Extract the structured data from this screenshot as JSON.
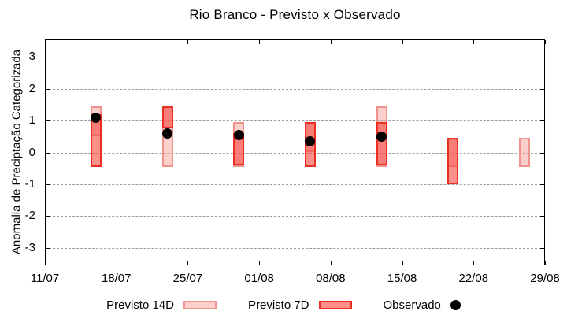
{
  "chart_data": {
    "type": "candlestick",
    "title": "Rio Branco - Previsto x Observado",
    "ylabel": "Anomalia de Preciptação Categorizada",
    "xlabel": "",
    "grid": "horizontal-dashed",
    "legend_position": "bottom-center",
    "ylim": [
      -3.55,
      3.55
    ],
    "y_ticks": [
      3,
      2,
      1,
      0,
      -1,
      -2,
      -3
    ],
    "y_tick_labels": [
      "3",
      "2",
      "1",
      "0",
      "-1",
      "-2",
      "-3"
    ],
    "xlim_days": [
      0,
      49
    ],
    "x_tick_days": [
      0,
      7,
      14,
      21,
      28,
      35,
      42,
      49
    ],
    "x_tick_labels": [
      "11/07",
      "18/07",
      "25/07",
      "01/08",
      "08/08",
      "15/08",
      "22/08",
      "29/08"
    ],
    "series": [
      {
        "name": "Previsto 14D",
        "type": "range-bar",
        "fill": "rgba(246,151,143,0.45)",
        "border": "#f0938c"
      },
      {
        "name": "Previsto 7D",
        "type": "range-bar",
        "fill": "rgba(247,70,60,0.6)",
        "border": "#e92e24"
      },
      {
        "name": "Observado",
        "type": "point",
        "color": "#000000"
      }
    ],
    "groups": [
      {
        "x_day_offset": 5,
        "previsto_14d": [
          0.5,
          1.45
        ],
        "previsto_7d": [
          -0.45,
          1.2
        ],
        "observado": 1.1
      },
      {
        "x_day_offset": 12,
        "previsto_14d": [
          -0.45,
          1.45
        ],
        "previsto_7d": [
          0.75,
          1.45
        ],
        "observado": 0.6
      },
      {
        "x_day_offset": 19,
        "previsto_14d": [
          -0.45,
          0.95
        ],
        "previsto_7d": [
          -0.4,
          0.6
        ],
        "observado": 0.55
      },
      {
        "x_day_offset": 26,
        "previsto_14d": [
          0.0,
          0.95
        ],
        "previsto_7d": [
          -0.45,
          0.95
        ],
        "observado": 0.35
      },
      {
        "x_day_offset": 33,
        "previsto_14d": [
          -0.45,
          1.45
        ],
        "previsto_7d": [
          -0.4,
          0.95
        ],
        "observado": 0.5
      },
      {
        "x_day_offset": 40,
        "previsto_14d": [
          -0.45,
          0.45
        ],
        "previsto_7d": [
          -1.0,
          0.45
        ],
        "observado": null
      },
      {
        "x_day_offset": 47,
        "previsto_14d": [
          -0.45,
          0.45
        ],
        "previsto_7d": null,
        "observado": null
      }
    ],
    "legend": {
      "items": [
        {
          "label": "Previsto 14D",
          "swatch": "range-bar-light"
        },
        {
          "label": "Previsto 7D",
          "swatch": "range-bar-dark"
        },
        {
          "label": "Observado",
          "swatch": "point"
        }
      ]
    }
  }
}
